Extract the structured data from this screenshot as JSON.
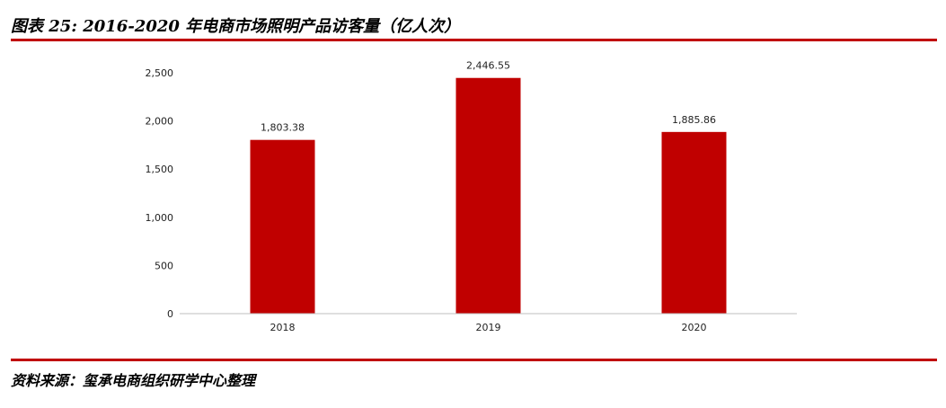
{
  "figure": {
    "title": "图表 25: 2016-2020 年电商市场照明产品访客量（亿人次）",
    "source": "资料来源：玺承电商组织研学中心整理"
  },
  "colors": {
    "accent": "#c00000",
    "bar": "#c00000",
    "axis": "#bfbfbf",
    "text": "#222222"
  },
  "chart_data": {
    "type": "bar",
    "title": "",
    "xlabel": "",
    "ylabel": "",
    "categories": [
      "2018",
      "2019",
      "2020"
    ],
    "series": [
      {
        "values": [
          1803.38,
          2446.55,
          1885.86
        ],
        "data_labels": [
          "1,803.38",
          "2,446.55",
          "1,885.86"
        ]
      }
    ],
    "ylim": [
      0,
      2500
    ],
    "yticks": [
      0,
      500,
      1000,
      1500,
      2000,
      2500
    ],
    "ytick_labels": [
      "0",
      "500",
      "1,000",
      "1,500",
      "2,000",
      "2,500"
    ],
    "grid": false,
    "legend": "none"
  }
}
